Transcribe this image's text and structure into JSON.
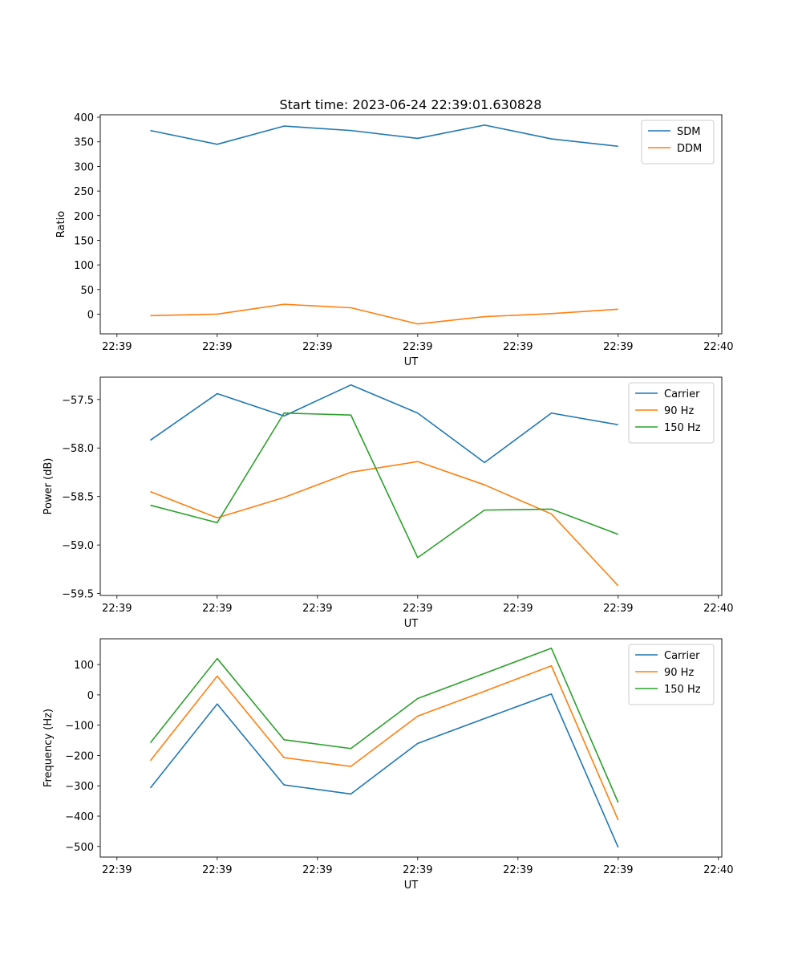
{
  "title": "Start time: 2023-06-24 22:39:01.630828",
  "colors": {
    "blue": "#1f77b4",
    "orange": "#ff7f0e",
    "green": "#2ca02c"
  },
  "chart_data": [
    {
      "type": "line",
      "xlabel": "UT",
      "ylabel": "Ratio",
      "x": [
        1,
        2,
        3,
        4,
        5,
        6,
        7,
        8
      ],
      "xlim": [
        0.25,
        9.55
      ],
      "ylim": [
        -40,
        405
      ],
      "xticks": [
        0.5,
        2,
        3.5,
        5,
        6.5,
        8,
        9.5
      ],
      "xtick_labels": [
        "22:39",
        "22:39",
        "22:39",
        "22:39",
        "22:39",
        "22:39",
        "22:40"
      ],
      "yticks": [
        0,
        50,
        100,
        150,
        200,
        250,
        300,
        350,
        400
      ],
      "ytick_labels": [
        "0",
        "50",
        "100",
        "150",
        "200",
        "250",
        "300",
        "350",
        "400"
      ],
      "legend": "top-right",
      "series": [
        {
          "name": "SDM",
          "color": "#1f77b4",
          "values": [
            373,
            345,
            382,
            373,
            357,
            384,
            356,
            341
          ]
        },
        {
          "name": "DDM",
          "color": "#ff7f0e",
          "values": [
            -3,
            0,
            20,
            13,
            -20,
            -5,
            1,
            10
          ]
        }
      ]
    },
    {
      "type": "line",
      "xlabel": "UT",
      "ylabel": "Power (dB)",
      "x": [
        1,
        2,
        3,
        4,
        5,
        6,
        7,
        8
      ],
      "xlim": [
        0.25,
        9.55
      ],
      "ylim": [
        -59.52,
        -57.27
      ],
      "xticks": [
        0.5,
        2,
        3.5,
        5,
        6.5,
        8,
        9.5
      ],
      "xtick_labels": [
        "22:39",
        "22:39",
        "22:39",
        "22:39",
        "22:39",
        "22:39",
        "22:40"
      ],
      "yticks": [
        -59.5,
        -59.0,
        -58.5,
        -58.0,
        -57.5
      ],
      "ytick_labels": [
        "−59.5",
        "−59.0",
        "−58.5",
        "−58.0",
        "−57.5"
      ],
      "legend": "top-right",
      "series": [
        {
          "name": "Carrier",
          "color": "#1f77b4",
          "values": [
            -57.92,
            -57.44,
            -57.67,
            -57.35,
            -57.64,
            -58.15,
            -57.64,
            -57.76
          ]
        },
        {
          "name": "90 Hz",
          "color": "#ff7f0e",
          "values": [
            -58.45,
            -58.72,
            -58.51,
            -58.25,
            -58.14,
            -58.38,
            -58.68,
            -59.42
          ]
        },
        {
          "name": "150 Hz",
          "color": "#2ca02c",
          "values": [
            -58.59,
            -58.77,
            -57.64,
            -57.66,
            -59.13,
            -58.64,
            -58.63,
            -58.89
          ]
        }
      ]
    },
    {
      "type": "line",
      "xlabel": "UT",
      "ylabel": "Frequency (Hz)",
      "x": [
        1,
        2,
        3,
        4,
        5,
        6,
        7,
        8
      ],
      "xlim": [
        0.25,
        9.55
      ],
      "ylim": [
        -535,
        185
      ],
      "xticks": [
        0.5,
        2,
        3.5,
        5,
        6.5,
        8,
        9.5
      ],
      "xtick_labels": [
        "22:39",
        "22:39",
        "22:39",
        "22:39",
        "22:39",
        "22:39",
        "22:40"
      ],
      "yticks": [
        -500,
        -400,
        -300,
        -200,
        -100,
        0,
        100
      ],
      "ytick_labels": [
        "−500",
        "−400",
        "−300",
        "−200",
        "−100",
        "0",
        "100"
      ],
      "legend": "top-right",
      "series": [
        {
          "name": "Carrier",
          "color": "#1f77b4",
          "values": [
            -307,
            -30,
            -297,
            -327,
            -160,
            -78,
            3,
            -503
          ]
        },
        {
          "name": "90 Hz",
          "color": "#ff7f0e",
          "values": [
            -217,
            62,
            -207,
            -236,
            -70,
            12,
            96,
            -413
          ]
        },
        {
          "name": "150 Hz",
          "color": "#2ca02c",
          "values": [
            -158,
            120,
            -148,
            -177,
            -12,
            71,
            154,
            -355
          ]
        }
      ]
    }
  ]
}
